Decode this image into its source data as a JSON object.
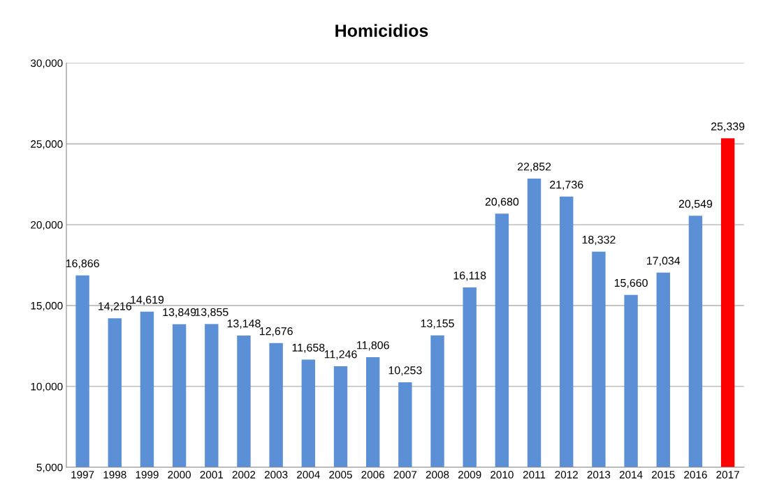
{
  "chart_data": {
    "type": "bar",
    "title": "Homicidios",
    "categories": [
      "1997",
      "1998",
      "1999",
      "2000",
      "2001",
      "2002",
      "2003",
      "2004",
      "2005",
      "2006",
      "2007",
      "2008",
      "2009",
      "2010",
      "2011",
      "2012",
      "2013",
      "2014",
      "2015",
      "2016",
      "2017"
    ],
    "values": [
      16866,
      14216,
      14619,
      13849,
      13855,
      13148,
      12676,
      11658,
      11246,
      11806,
      10253,
      13155,
      16118,
      20680,
      22852,
      21736,
      18332,
      15660,
      17034,
      20549,
      25339
    ],
    "value_labels": [
      "16,866",
      "14,216",
      "14,619",
      "13,849",
      "13,855",
      "13,148",
      "12,676",
      "11,658",
      "11,246",
      "11,806",
      "10,253",
      "13,155",
      "16,118",
      "20,680",
      "22,852",
      "21,736",
      "18,332",
      "15,660",
      "17,034",
      "20,549",
      "25,339"
    ],
    "colors": [
      "#5b8fd6",
      "#5b8fd6",
      "#5b8fd6",
      "#5b8fd6",
      "#5b8fd6",
      "#5b8fd6",
      "#5b8fd6",
      "#5b8fd6",
      "#5b8fd6",
      "#5b8fd6",
      "#5b8fd6",
      "#5b8fd6",
      "#5b8fd6",
      "#5b8fd6",
      "#5b8fd6",
      "#5b8fd6",
      "#5b8fd6",
      "#5b8fd6",
      "#5b8fd6",
      "#5b8fd6",
      "#ff0000"
    ],
    "ylim": [
      5000,
      30000
    ],
    "yticks": [
      {
        "value": 5000,
        "label": "5,000"
      },
      {
        "value": 10000,
        "label": "10,000"
      },
      {
        "value": 15000,
        "label": "15,000"
      },
      {
        "value": 20000,
        "label": "20,000"
      },
      {
        "value": 25000,
        "label": "25,000"
      },
      {
        "value": 30000,
        "label": "30,000"
      }
    ],
    "grid": "y",
    "legend": false
  }
}
